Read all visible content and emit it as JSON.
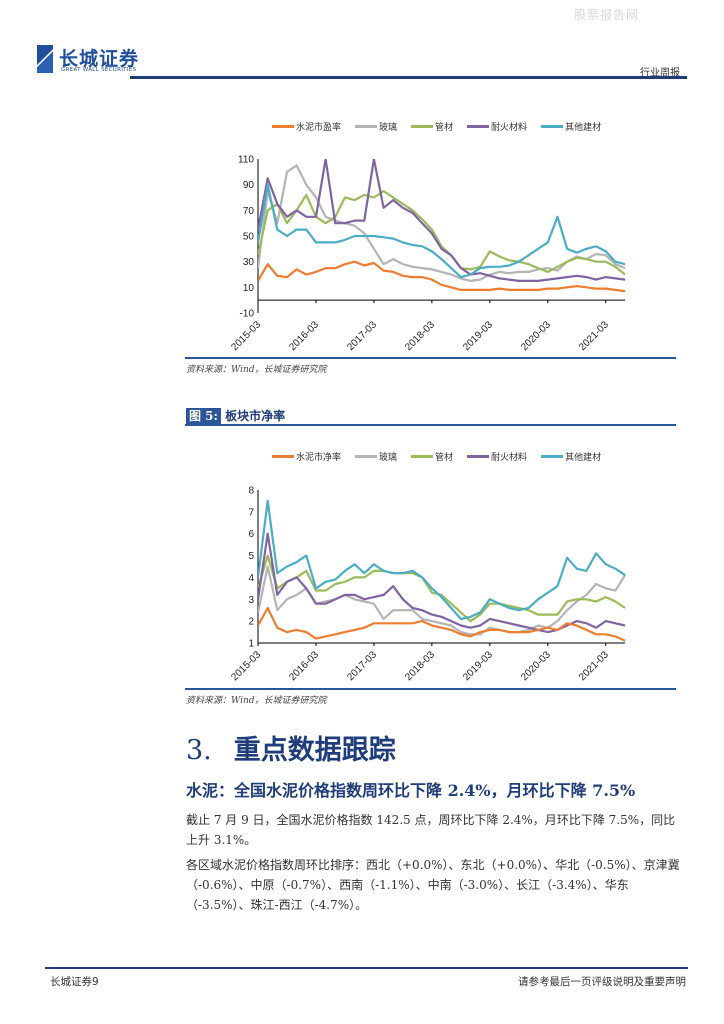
{
  "watermark": "股票报告网",
  "header": {
    "logo_cn": "长城证券",
    "logo_en": "GREAT WALL SECURITIES",
    "report_type": "行业周报"
  },
  "colors": {
    "cement": "#ed7d31",
    "glass": "#b4b4b4",
    "pipe": "#9bbb59",
    "refractory": "#8064a2",
    "other": "#4bacc6",
    "brand": "#1f3d7a"
  },
  "chart_data": [
    {
      "type": "line",
      "title": "",
      "legend_position": "top",
      "ylim": [
        -10,
        110
      ],
      "yticks": [
        110,
        90,
        70,
        50,
        30,
        10,
        -10
      ],
      "xticks": [
        "2015-03",
        "2016-03",
        "2017-03",
        "2018-03",
        "2019-03",
        "2020-03",
        "2021-03"
      ],
      "x": [
        "2015-03",
        "2015-05",
        "2015-07",
        "2015-09",
        "2015-11",
        "2016-01",
        "2016-03",
        "2016-05",
        "2016-07",
        "2016-09",
        "2016-11",
        "2017-01",
        "2017-03",
        "2017-05",
        "2017-07",
        "2017-09",
        "2017-11",
        "2018-01",
        "2018-03",
        "2018-05",
        "2018-07",
        "2018-09",
        "2018-11",
        "2019-01",
        "2019-03",
        "2019-05",
        "2019-07",
        "2019-09",
        "2019-11",
        "2020-01",
        "2020-03",
        "2020-05",
        "2020-07",
        "2020-09",
        "2020-11",
        "2021-01",
        "2021-03",
        "2021-05",
        "2021-07"
      ],
      "series": [
        {
          "name": "水泥市盈率",
          "color_key": "cement",
          "values": [
            15,
            28,
            19,
            18,
            24,
            20,
            22,
            25,
            25,
            28,
            30,
            27,
            29,
            23,
            22,
            19,
            18,
            18,
            16,
            12,
            10,
            8,
            8,
            8,
            8,
            9,
            8,
            8,
            8,
            8,
            9,
            9,
            10,
            11,
            10,
            9,
            9,
            8,
            7
          ]
        },
        {
          "name": "玻璃",
          "color_key": "glass",
          "values": [
            25,
            85,
            60,
            100,
            105,
            90,
            80,
            65,
            62,
            60,
            58,
            52,
            40,
            28,
            32,
            28,
            26,
            25,
            24,
            22,
            20,
            17,
            15,
            16,
            20,
            22,
            21,
            22,
            22,
            24,
            25,
            23,
            30,
            34,
            32,
            36,
            35,
            28,
            25
          ]
        },
        {
          "name": "管材",
          "color_key": "pipe",
          "values": [
            35,
            70,
            75,
            60,
            70,
            82,
            65,
            60,
            65,
            80,
            78,
            82,
            80,
            85,
            80,
            75,
            70,
            63,
            55,
            42,
            35,
            25,
            24,
            26,
            38,
            34,
            31,
            30,
            28,
            25,
            22,
            26,
            30,
            33,
            32,
            30,
            30,
            26,
            20
          ]
        },
        {
          "name": "耐火材料",
          "color_key": "refractory",
          "values": [
            55,
            95,
            75,
            65,
            70,
            65,
            65,
            110,
            60,
            60,
            62,
            62,
            110,
            72,
            78,
            72,
            68,
            60,
            52,
            40,
            35,
            25,
            20,
            21,
            19,
            17,
            16,
            15,
            15,
            15,
            16,
            17,
            18,
            19,
            18,
            16,
            18,
            17,
            16
          ]
        },
        {
          "name": "其他建材",
          "color_key": "other",
          "values": [
            45,
            90,
            55,
            50,
            55,
            55,
            45,
            45,
            45,
            47,
            50,
            50,
            50,
            49,
            48,
            45,
            43,
            42,
            38,
            32,
            25,
            18,
            20,
            25,
            26,
            26,
            27,
            30,
            35,
            40,
            45,
            65,
            40,
            37,
            40,
            42,
            38,
            30,
            28
          ]
        }
      ]
    },
    {
      "type": "line",
      "title": "板块市净率",
      "legend_position": "top",
      "ylim": [
        1,
        8
      ],
      "yticks": [
        8,
        7,
        6,
        5,
        4,
        3,
        2,
        1
      ],
      "xticks": [
        "2015-03",
        "2016-03",
        "2017-03",
        "2018-03",
        "2019-03",
        "2020-03",
        "2021-03"
      ],
      "x": [
        "2015-03",
        "2015-05",
        "2015-07",
        "2015-09",
        "2015-11",
        "2016-01",
        "2016-03",
        "2016-05",
        "2016-07",
        "2016-09",
        "2016-11",
        "2017-01",
        "2017-03",
        "2017-05",
        "2017-07",
        "2017-09",
        "2017-11",
        "2018-01",
        "2018-03",
        "2018-05",
        "2018-07",
        "2018-09",
        "2018-11",
        "2019-01",
        "2019-03",
        "2019-05",
        "2019-07",
        "2019-09",
        "2019-11",
        "2020-01",
        "2020-03",
        "2020-05",
        "2020-07",
        "2020-09",
        "2020-11",
        "2021-01",
        "2021-03",
        "2021-05",
        "2021-07"
      ],
      "series": [
        {
          "name": "水泥市净率",
          "color_key": "cement",
          "values": [
            1.8,
            2.6,
            1.7,
            1.5,
            1.6,
            1.5,
            1.2,
            1.3,
            1.4,
            1.5,
            1.6,
            1.7,
            1.9,
            1.9,
            1.9,
            1.9,
            1.9,
            2.0,
            1.8,
            1.7,
            1.6,
            1.4,
            1.3,
            1.5,
            1.6,
            1.6,
            1.5,
            1.5,
            1.5,
            1.6,
            1.7,
            1.6,
            1.9,
            1.8,
            1.6,
            1.4,
            1.4,
            1.3,
            1.1
          ]
        },
        {
          "name": "玻璃",
          "color_key": "glass",
          "values": [
            2.4,
            4.5,
            2.5,
            3.0,
            3.2,
            3.5,
            2.8,
            2.9,
            3.0,
            3.2,
            3.0,
            2.9,
            2.8,
            2.1,
            2.5,
            2.5,
            2.5,
            2.1,
            2.0,
            1.9,
            1.8,
            1.5,
            1.4,
            1.4,
            1.7,
            1.6,
            1.5,
            1.5,
            1.6,
            1.8,
            1.7,
            2.0,
            2.5,
            2.9,
            3.2,
            3.7,
            3.5,
            3.4,
            4.1
          ]
        },
        {
          "name": "管材",
          "color_key": "pipe",
          "values": [
            3.5,
            5.0,
            3.5,
            3.8,
            4.0,
            4.3,
            3.4,
            3.4,
            3.7,
            3.8,
            4.0,
            4.0,
            4.3,
            4.3,
            4.2,
            4.2,
            4.2,
            4.0,
            3.3,
            3.2,
            2.8,
            2.4,
            2.0,
            2.3,
            2.8,
            2.8,
            2.7,
            2.6,
            2.5,
            2.3,
            2.3,
            2.3,
            2.9,
            3.0,
            3.0,
            2.9,
            3.1,
            2.9,
            2.6
          ]
        },
        {
          "name": "耐火材料",
          "color_key": "refractory",
          "values": [
            3.0,
            6.0,
            3.2,
            3.8,
            4.0,
            3.5,
            2.8,
            2.8,
            3.0,
            3.2,
            3.2,
            3.0,
            3.1,
            3.2,
            3.6,
            3.0,
            2.6,
            2.5,
            2.3,
            2.2,
            2.0,
            1.8,
            1.7,
            1.8,
            2.1,
            2.0,
            1.9,
            1.8,
            1.7,
            1.6,
            1.5,
            1.6,
            1.8,
            2.0,
            1.9,
            1.7,
            2.0,
            1.9,
            1.8
          ]
        },
        {
          "name": "其他建材",
          "color_key": "other",
          "values": [
            4.0,
            7.5,
            4.2,
            4.5,
            4.7,
            5.0,
            3.5,
            3.8,
            3.9,
            4.3,
            4.6,
            4.2,
            4.6,
            4.3,
            4.2,
            4.2,
            4.3,
            4.0,
            3.5,
            3.1,
            2.6,
            2.1,
            2.2,
            2.4,
            3.0,
            2.8,
            2.6,
            2.5,
            2.6,
            3.0,
            3.3,
            3.6,
            4.9,
            4.4,
            4.3,
            5.1,
            4.6,
            4.4,
            4.1
          ]
        }
      ]
    }
  ],
  "chart1": {
    "source": "资料来源：Wind，长城证券研究院"
  },
  "chart2": {
    "fig_num": "图 5:",
    "fig_title": "板块市净率",
    "source": "资料来源：Wind，长城证券研究院"
  },
  "section": {
    "number": "3.",
    "title": "重点数据跟踪",
    "subtitle": "水泥：全国水泥价格指数周环比下降 2.4%，月环比下降 7.5%",
    "para1": "截止 7 月 9 日，全国水泥价格指数 142.5 点，周环比下降 2.4%，月环比下降 7.5%，同比上升 3.1%。",
    "para2": "各区域水泥价格指数周环比排序：西北（+0.0%）、东北（+0.0%）、华北（-0.5%）、京津冀（-0.6%）、中原（-0.7%）、西南（-1.1%）、中南（-3.0%）、长江（-3.4%）、华东（-3.5%）、珠江-西江（-4.7%）。"
  },
  "footer": {
    "left": "长城证券9",
    "right": "请参考最后一页评级说明及重要声明"
  }
}
